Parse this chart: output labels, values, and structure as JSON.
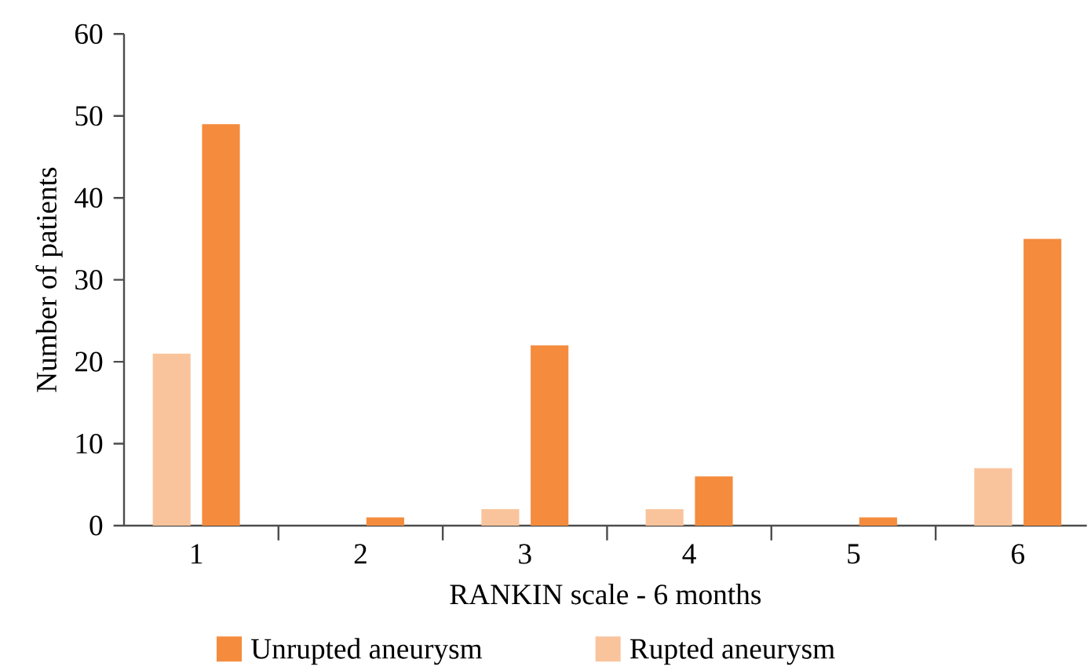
{
  "chart_data": {
    "type": "bar",
    "xlabel": "RANKIN scale - 6 months",
    "ylabel": "Number of patients",
    "categories": [
      "1",
      "2",
      "3",
      "4",
      "5",
      "6"
    ],
    "series": [
      {
        "name": "Rupted aneurysm",
        "color": "#f9c49c",
        "values": [
          21,
          0,
          2,
          2,
          0,
          7
        ]
      },
      {
        "name": "Unrupted aneurysm",
        "color": "#f58b3c",
        "values": [
          49,
          1,
          22,
          6,
          1,
          35
        ]
      }
    ],
    "ylim": [
      0,
      60
    ],
    "yticks": [
      0,
      10,
      20,
      30,
      40,
      50,
      60
    ],
    "grid": false,
    "legend": "bottom"
  }
}
